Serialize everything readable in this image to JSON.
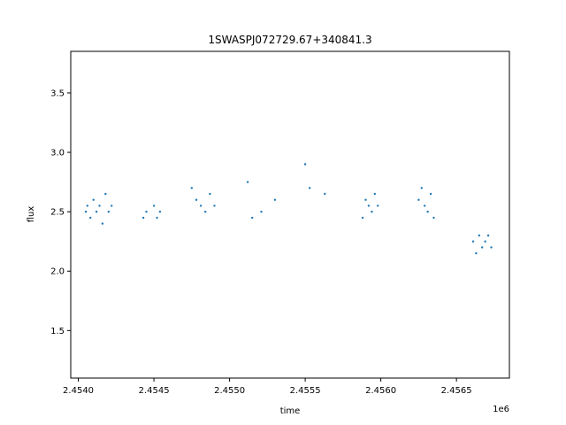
{
  "chart_data": {
    "type": "scatter",
    "title": "1SWASPJ072729.67+340841.3",
    "xlabel": "time",
    "ylabel": "flux",
    "x_offset_label": "1e6",
    "xlim": [
      2.45395,
      2.45685
    ],
    "ylim": [
      1.1,
      3.85
    ],
    "x_ticks": [
      2.454,
      2.4545,
      2.455,
      2.4555,
      2.456,
      2.4565
    ],
    "x_tick_labels": [
      "2.4540",
      "2.4545",
      "2.4550",
      "2.4555",
      "2.4560",
      "2.4565"
    ],
    "y_ticks": [
      1.5,
      2.0,
      2.5,
      3.0,
      3.5
    ],
    "y_tick_labels": [
      "1.5",
      "2.0",
      "2.5",
      "3.0",
      "3.5"
    ],
    "grid": false,
    "marker_color": "#1f77b4",
    "series": [
      {
        "x": [
          2.45405,
          2.45406,
          2.45408,
          2.4541,
          2.45412,
          2.45414,
          2.45416,
          2.45418,
          2.4542,
          2.45422,
          2.45443,
          2.45445,
          2.4545,
          2.45452,
          2.45454,
          2.45475,
          2.45478,
          2.45481,
          2.45484,
          2.45487,
          2.4549,
          2.45512,
          2.45515,
          2.45521,
          2.4553,
          2.4555,
          2.45553,
          2.45563,
          2.45588,
          2.4559,
          2.45592,
          2.45594,
          2.45596,
          2.45598,
          2.45625,
          2.45627,
          2.45629,
          2.45631,
          2.45633,
          2.45635,
          2.45661,
          2.45663,
          2.45665,
          2.45667,
          2.45669,
          2.45671,
          2.45673
        ],
        "y": [
          2.5,
          2.55,
          2.45,
          2.6,
          2.5,
          2.55,
          2.4,
          2.65,
          2.5,
          2.55,
          2.45,
          2.5,
          2.55,
          2.45,
          2.5,
          2.7,
          2.6,
          2.55,
          2.5,
          2.65,
          2.55,
          2.75,
          2.45,
          2.5,
          2.6,
          2.9,
          2.7,
          2.65,
          2.45,
          2.6,
          2.55,
          2.5,
          2.65,
          2.55,
          2.6,
          2.7,
          2.55,
          2.5,
          2.65,
          2.45,
          2.25,
          2.15,
          2.3,
          2.2,
          2.25,
          2.3,
          2.2
        ]
      }
    ]
  }
}
